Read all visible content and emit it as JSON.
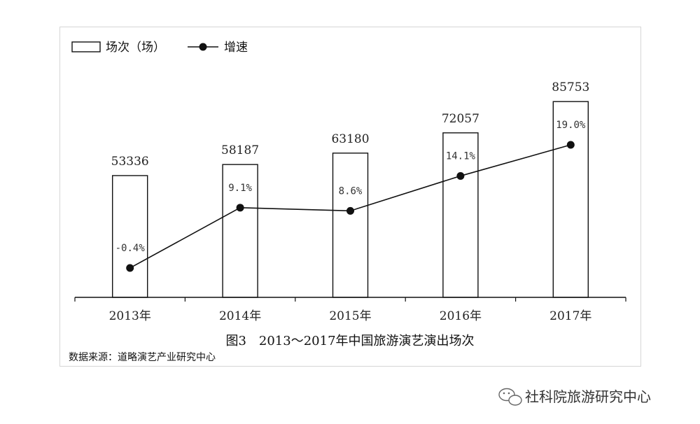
{
  "legend": {
    "bar_label": "场次（场）",
    "line_label": "增速"
  },
  "caption": "图3　2013～2017年中国旅游演艺演出场次",
  "source": "数据来源：道略演艺产业研究中心",
  "watermark": "社科院旅游研究中心",
  "chart_data": {
    "type": "bar",
    "title": "图3　2013～2017年中国旅游演艺演出场次",
    "categories": [
      "2013年",
      "2014年",
      "2015年",
      "2016年",
      "2017年"
    ],
    "series": [
      {
        "name": "场次（场）",
        "type": "bar",
        "values": [
          53336,
          58187,
          63180,
          72057,
          85753
        ],
        "labels": [
          "53336",
          "58187",
          "63180",
          "72057",
          "85753"
        ]
      },
      {
        "name": "增速",
        "type": "line",
        "values": [
          -0.4,
          9.1,
          8.6,
          14.1,
          19.0
        ],
        "labels": [
          "-0.4%",
          "9.1%",
          "8.6%",
          "14.1%",
          "19.0%"
        ]
      }
    ],
    "grid": false,
    "legend_position": "top-left"
  }
}
